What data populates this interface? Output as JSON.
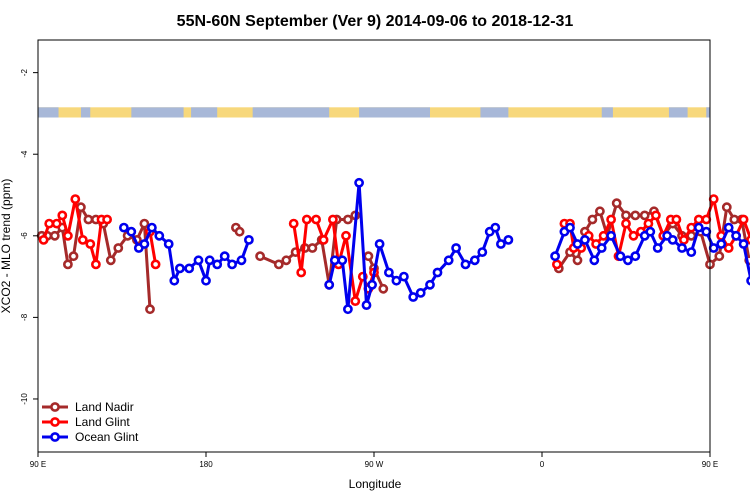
{
  "chart_data": {
    "type": "line",
    "title": "55N-60N September (Ver 9)   2014-09-06 to 2018-12-31",
    "xlabel": "Longitude",
    "ylabel": "XCO2 - MLO trend (ppm)",
    "xlim": [
      90,
      450
    ],
    "ylim": [
      -11.3,
      -1.2
    ],
    "x_ticks": [
      {
        "value": 90,
        "label": "90 E"
      },
      {
        "value": 180,
        "label": "180"
      },
      {
        "value": 270,
        "label": "90 W"
      },
      {
        "value": 360,
        "label": "0"
      },
      {
        "value": 450,
        "label": "90 E"
      },
      {
        "value": 540,
        "label": "180"
      }
    ],
    "y_ticks": [
      {
        "value": -2,
        "label": "-2"
      },
      {
        "value": -4,
        "label": "-4"
      },
      {
        "value": -6,
        "label": "-6"
      },
      {
        "value": -8,
        "label": "-8"
      },
      {
        "value": -10,
        "label": "-10"
      }
    ],
    "grid": false,
    "legend_position": "bottom-left",
    "map_strip": {
      "y_range": [
        -3.1,
        -2.85
      ],
      "land_color": "#f7d87c",
      "ocean_color": "#a8b8d8"
    },
    "series": [
      {
        "name": "Land Nadir",
        "color": "#a52a2a",
        "segments": [
          [
            [
              92,
              -6.0
            ],
            [
              95,
              -6.0
            ],
            [
              99,
              -6.0
            ],
            [
              103,
              -5.8
            ],
            [
              106,
              -6.7
            ],
            [
              109,
              -6.5
            ],
            [
              113,
              -5.3
            ],
            [
              117,
              -5.6
            ],
            [
              121,
              -5.6
            ],
            [
              125,
              -5.7
            ],
            [
              129,
              -6.6
            ],
            [
              133,
              -6.3
            ],
            [
              138,
              -6.0
            ],
            [
              143,
              -6.1
            ],
            [
              147,
              -5.7
            ],
            [
              150,
              -7.8
            ]
          ],
          [
            [
              196,
              -5.8
            ],
            [
              198,
              -5.9
            ]
          ],
          [
            [
              209,
              -6.5
            ],
            [
              219,
              -6.7
            ],
            [
              223,
              -6.6
            ],
            [
              228,
              -6.4
            ],
            [
              233,
              -6.3
            ],
            [
              237,
              -6.3
            ],
            [
              242,
              -6.1
            ],
            [
              246,
              -7.2
            ],
            [
              250,
              -5.6
            ],
            [
              256,
              -5.6
            ],
            [
              260,
              -5.5
            ]
          ],
          [
            [
              267,
              -6.5
            ],
            [
              270,
              -6.8
            ],
            [
              275,
              -7.3
            ]
          ],
          [
            [
              369,
              -6.8
            ],
            [
              375,
              -6.4
            ],
            [
              379,
              -6.6
            ],
            [
              383,
              -5.9
            ],
            [
              387,
              -5.6
            ],
            [
              391,
              -5.4
            ],
            [
              395,
              -6.0
            ],
            [
              400,
              -5.2
            ],
            [
              405,
              -5.5
            ],
            [
              410,
              -5.5
            ],
            [
              415,
              -5.5
            ],
            [
              420,
              -5.4
            ],
            [
              425,
              -6.0
            ],
            [
              430,
              -5.7
            ],
            [
              435,
              -6.0
            ],
            [
              440,
              -6.0
            ],
            [
              445,
              -5.9
            ],
            [
              450,
              -6.7
            ],
            [
              455,
              -6.5
            ],
            [
              459,
              -5.3
            ],
            [
              463,
              -5.6
            ],
            [
              467,
              -5.6
            ],
            [
              471,
              -6.6
            ],
            [
              476,
              -6.3
            ],
            [
              480,
              -6.0
            ],
            [
              483,
              -5.7
            ],
            [
              486,
              -7.8
            ]
          ]
        ]
      },
      {
        "name": "Land Glint",
        "color": "#ff0000",
        "segments": [
          [
            [
              93,
              -6.1
            ],
            [
              96,
              -5.7
            ],
            [
              100,
              -5.7
            ],
            [
              103,
              -5.5
            ],
            [
              106,
              -6.0
            ],
            [
              110,
              -5.1
            ],
            [
              114,
              -6.1
            ],
            [
              118,
              -6.2
            ],
            [
              121,
              -6.7
            ],
            [
              124,
              -5.6
            ],
            [
              127,
              -5.6
            ]
          ],
          [
            [
              150,
              -5.9
            ],
            [
              153,
              -6.7
            ]
          ],
          [
            [
              227,
              -5.7
            ],
            [
              231,
              -6.9
            ],
            [
              234,
              -5.6
            ],
            [
              239,
              -5.6
            ],
            [
              243,
              -6.1
            ],
            [
              248,
              -5.6
            ],
            [
              251,
              -6.7
            ],
            [
              255,
              -6.0
            ],
            [
              260,
              -7.6
            ],
            [
              264,
              -7.0
            ],
            [
              267,
              -7.3
            ],
            [
              270,
              -6.9
            ]
          ],
          [
            [
              368,
              -6.7
            ]
          ],
          [
            [
              372,
              -5.7
            ],
            [
              375,
              -5.7
            ],
            [
              377,
              -6.3
            ],
            [
              381,
              -6.3
            ],
            [
              385,
              -6.0
            ],
            [
              389,
              -6.2
            ],
            [
              393,
              -6.0
            ],
            [
              397,
              -5.6
            ],
            [
              401,
              -6.5
            ],
            [
              405,
              -5.7
            ],
            [
              409,
              -6.0
            ],
            [
              413,
              -5.9
            ],
            [
              417,
              -5.7
            ],
            [
              421,
              -5.5
            ],
            [
              425,
              -6.0
            ],
            [
              429,
              -5.6
            ],
            [
              432,
              -5.6
            ],
            [
              436,
              -6.1
            ],
            [
              440,
              -5.8
            ],
            [
              444,
              -5.6
            ],
            [
              448,
              -5.6
            ],
            [
              452,
              -5.1
            ],
            [
              456,
              -6.0
            ],
            [
              460,
              -6.3
            ],
            [
              464,
              -6.0
            ],
            [
              468,
              -5.6
            ],
            [
              472,
              -6.1
            ],
            [
              476,
              -5.9
            ],
            [
              480,
              -6.7
            ]
          ]
        ]
      },
      {
        "name": "Ocean Glint",
        "color": "#0000ee",
        "segments": [
          [
            [
              136,
              -5.8
            ],
            [
              140,
              -5.9
            ],
            [
              144,
              -6.3
            ],
            [
              147,
              -6.2
            ],
            [
              151,
              -5.8
            ],
            [
              155,
              -6.0
            ],
            [
              160,
              -6.2
            ],
            [
              163,
              -7.1
            ],
            [
              166,
              -6.8
            ],
            [
              171,
              -6.8
            ],
            [
              176,
              -6.6
            ],
            [
              180,
              -7.1
            ],
            [
              182,
              -6.6
            ],
            [
              186,
              -6.7
            ],
            [
              190,
              -6.5
            ],
            [
              194,
              -6.7
            ],
            [
              199,
              -6.6
            ],
            [
              203,
              -6.1
            ]
          ],
          [
            [
              246,
              -7.2
            ],
            [
              249,
              -6.6
            ],
            [
              253,
              -6.6
            ],
            [
              256,
              -7.8
            ],
            [
              262,
              -4.7
            ],
            [
              266,
              -7.7
            ],
            [
              269,
              -7.2
            ],
            [
              273,
              -6.2
            ],
            [
              278,
              -6.9
            ],
            [
              282,
              -7.1
            ],
            [
              286,
              -7.0
            ],
            [
              291,
              -7.5
            ],
            [
              295,
              -7.4
            ],
            [
              300,
              -7.2
            ],
            [
              304,
              -6.9
            ],
            [
              310,
              -6.6
            ],
            [
              314,
              -6.3
            ],
            [
              319,
              -6.7
            ],
            [
              324,
              -6.6
            ],
            [
              328,
              -6.4
            ],
            [
              332,
              -5.9
            ],
            [
              335,
              -5.8
            ],
            [
              338,
              -6.2
            ],
            [
              342,
              -6.1
            ]
          ],
          [
            [
              367,
              -6.5
            ],
            [
              372,
              -5.9
            ],
            [
              375,
              -5.8
            ],
            [
              379,
              -6.2
            ],
            [
              383,
              -6.1
            ],
            [
              388,
              -6.6
            ],
            [
              392,
              -6.3
            ],
            [
              397,
              -6.0
            ],
            [
              402,
              -6.5
            ],
            [
              406,
              -6.6
            ],
            [
              410,
              -6.5
            ],
            [
              415,
              -6.0
            ],
            [
              418,
              -5.9
            ],
            [
              422,
              -6.3
            ],
            [
              427,
              -6.0
            ],
            [
              430,
              -6.1
            ],
            [
              435,
              -6.3
            ],
            [
              440,
              -6.4
            ],
            [
              444,
              -5.8
            ],
            [
              448,
              -5.9
            ],
            [
              452,
              -6.3
            ],
            [
              456,
              -6.2
            ],
            [
              460,
              -5.8
            ],
            [
              464,
              -6.0
            ],
            [
              468,
              -6.2
            ],
            [
              472,
              -7.1
            ],
            [
              476,
              -6.0
            ]
          ]
        ]
      }
    ]
  }
}
